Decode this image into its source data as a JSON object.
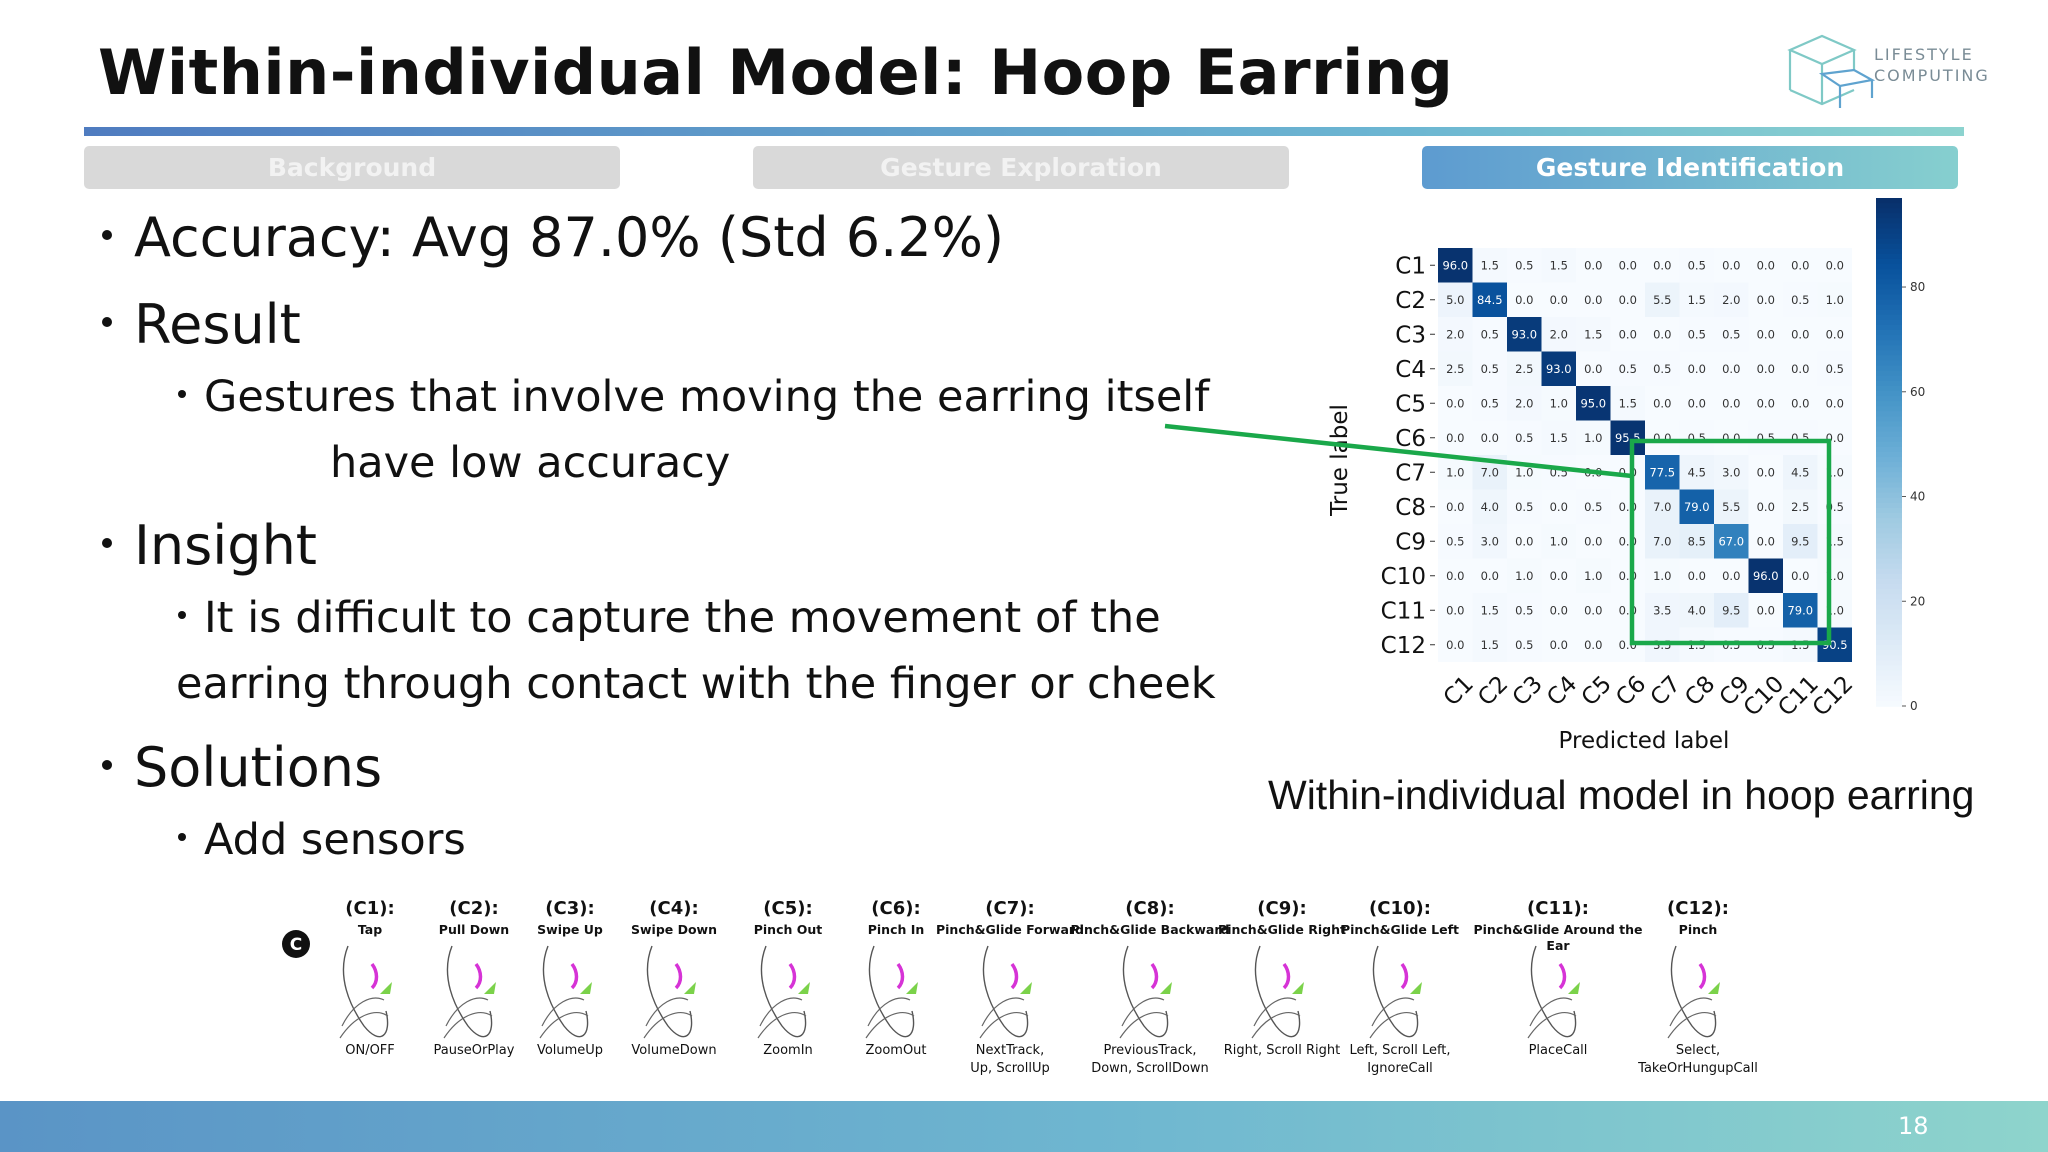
{
  "slide": {
    "title": "Within-individual Model: Hoop Earring",
    "logo_text": [
      "LIFESTYLE",
      "COMPUTING"
    ],
    "page_number": "18"
  },
  "tabs": [
    {
      "label": "Background",
      "active": false
    },
    {
      "label": "Gesture Exploration",
      "active": false
    },
    {
      "label": "Gesture Identification",
      "active": true
    }
  ],
  "bullets": {
    "accuracy": "Accuracy: Avg 87.0% (Std 6.2%)",
    "result": "Result",
    "result_sub_1": "Gestures that involve moving the earring itself",
    "result_sub_2": "have low accuracy",
    "insight": "Insight",
    "insight_sub_1": "It is difficult to capture the movement of the",
    "insight_sub_2": "earring through contact with the finger or cheek",
    "solutions": "Solutions",
    "solutions_sub": "Add sensors"
  },
  "colors": {
    "highlight_box": "#1aa84a",
    "accent_gradient_start": "#5d9bd0",
    "accent_gradient_end": "#86cfcf",
    "gesture_arrow": "#7bd24a",
    "earring": "#d633d6"
  },
  "chart_data": {
    "type": "heatmap",
    "title": "",
    "caption": "Within-individual model in hoop earring",
    "xlabel": "Predicted label",
    "ylabel": "True label",
    "labels": [
      "C1",
      "C2",
      "C3",
      "C4",
      "C5",
      "C6",
      "C7",
      "C8",
      "C9",
      "C10",
      "C11",
      "C12"
    ],
    "colorbar_ticks": [
      0,
      20,
      40,
      60,
      80
    ],
    "values": [
      [
        96.0,
        1.5,
        0.5,
        1.5,
        0.0,
        0.0,
        0.0,
        0.5,
        0.0,
        0.0,
        0.0,
        0.0
      ],
      [
        5.0,
        84.5,
        0.0,
        0.0,
        0.0,
        0.0,
        5.5,
        1.5,
        2.0,
        0.0,
        0.5,
        1.0
      ],
      [
        2.0,
        0.5,
        93.0,
        2.0,
        1.5,
        0.0,
        0.0,
        0.5,
        0.5,
        0.0,
        0.0,
        0.0
      ],
      [
        2.5,
        0.5,
        2.5,
        93.0,
        0.0,
        0.5,
        0.5,
        0.0,
        0.0,
        0.0,
        0.0,
        0.5
      ],
      [
        0.0,
        0.5,
        2.0,
        1.0,
        95.0,
        1.5,
        0.0,
        0.0,
        0.0,
        0.0,
        0.0,
        0.0
      ],
      [
        0.0,
        0.0,
        0.5,
        1.5,
        1.0,
        95.5,
        0.0,
        0.5,
        0.0,
        0.5,
        0.5,
        0.0
      ],
      [
        1.0,
        7.0,
        1.0,
        0.5,
        0.0,
        0.0,
        77.5,
        4.5,
        3.0,
        0.0,
        4.5,
        1.0
      ],
      [
        0.0,
        4.0,
        0.5,
        0.0,
        0.5,
        0.0,
        7.0,
        79.0,
        5.5,
        0.0,
        2.5,
        0.5
      ],
      [
        0.5,
        3.0,
        0.0,
        1.0,
        0.0,
        0.0,
        7.0,
        8.5,
        67.0,
        0.0,
        9.5,
        1.5
      ],
      [
        0.0,
        0.0,
        1.0,
        0.0,
        1.0,
        0.0,
        1.0,
        0.0,
        0.0,
        96.0,
        0.0,
        1.0
      ],
      [
        0.0,
        1.5,
        0.5,
        0.0,
        0.0,
        0.0,
        3.5,
        4.0,
        9.5,
        0.0,
        79.0,
        1.0
      ],
      [
        0.0,
        1.5,
        0.5,
        0.0,
        0.0,
        0.0,
        3.5,
        1.5,
        0.5,
        0.5,
        1.5,
        90.5
      ]
    ],
    "highlight": {
      "rows": [
        "C7",
        "C11"
      ],
      "cols": [
        "C7",
        "C11"
      ]
    }
  },
  "gestures": {
    "panel_label": "C",
    "items": [
      {
        "code": "(C1):",
        "name": "Tap",
        "function": "ON/OFF"
      },
      {
        "code": "(C2):",
        "name": "Pull Down",
        "function": "PauseOrPlay"
      },
      {
        "code": "(C3):",
        "name": "Swipe Up",
        "function": "VolumeUp"
      },
      {
        "code": "(C4):",
        "name": "Swipe Down",
        "function": "VolumeDown"
      },
      {
        "code": "(C5):",
        "name": "Pinch Out",
        "function": "ZoomIn"
      },
      {
        "code": "(C6):",
        "name": "Pinch In",
        "function": "ZoomOut"
      },
      {
        "code": "(C7):",
        "name": "Pinch&Glide Forward",
        "function": "NextTrack,\nUp, ScrollUp"
      },
      {
        "code": "(C8):",
        "name": "Pinch&Glide Backward",
        "function": "PreviousTrack,\nDown, ScrollDown"
      },
      {
        "code": "(C9):",
        "name": "Pinch&Glide Right",
        "function": "Right, Scroll Right"
      },
      {
        "code": "(C10):",
        "name": "Pinch&Glide Left",
        "function": "Left, Scroll Left,\nIgnoreCall"
      },
      {
        "code": "(C11):",
        "name": "Pinch&Glide Around the\nEar",
        "function": "PlaceCall"
      },
      {
        "code": "(C12):",
        "name": "Pinch",
        "function": "Select,\nTakeOrHungupCall"
      }
    ]
  }
}
